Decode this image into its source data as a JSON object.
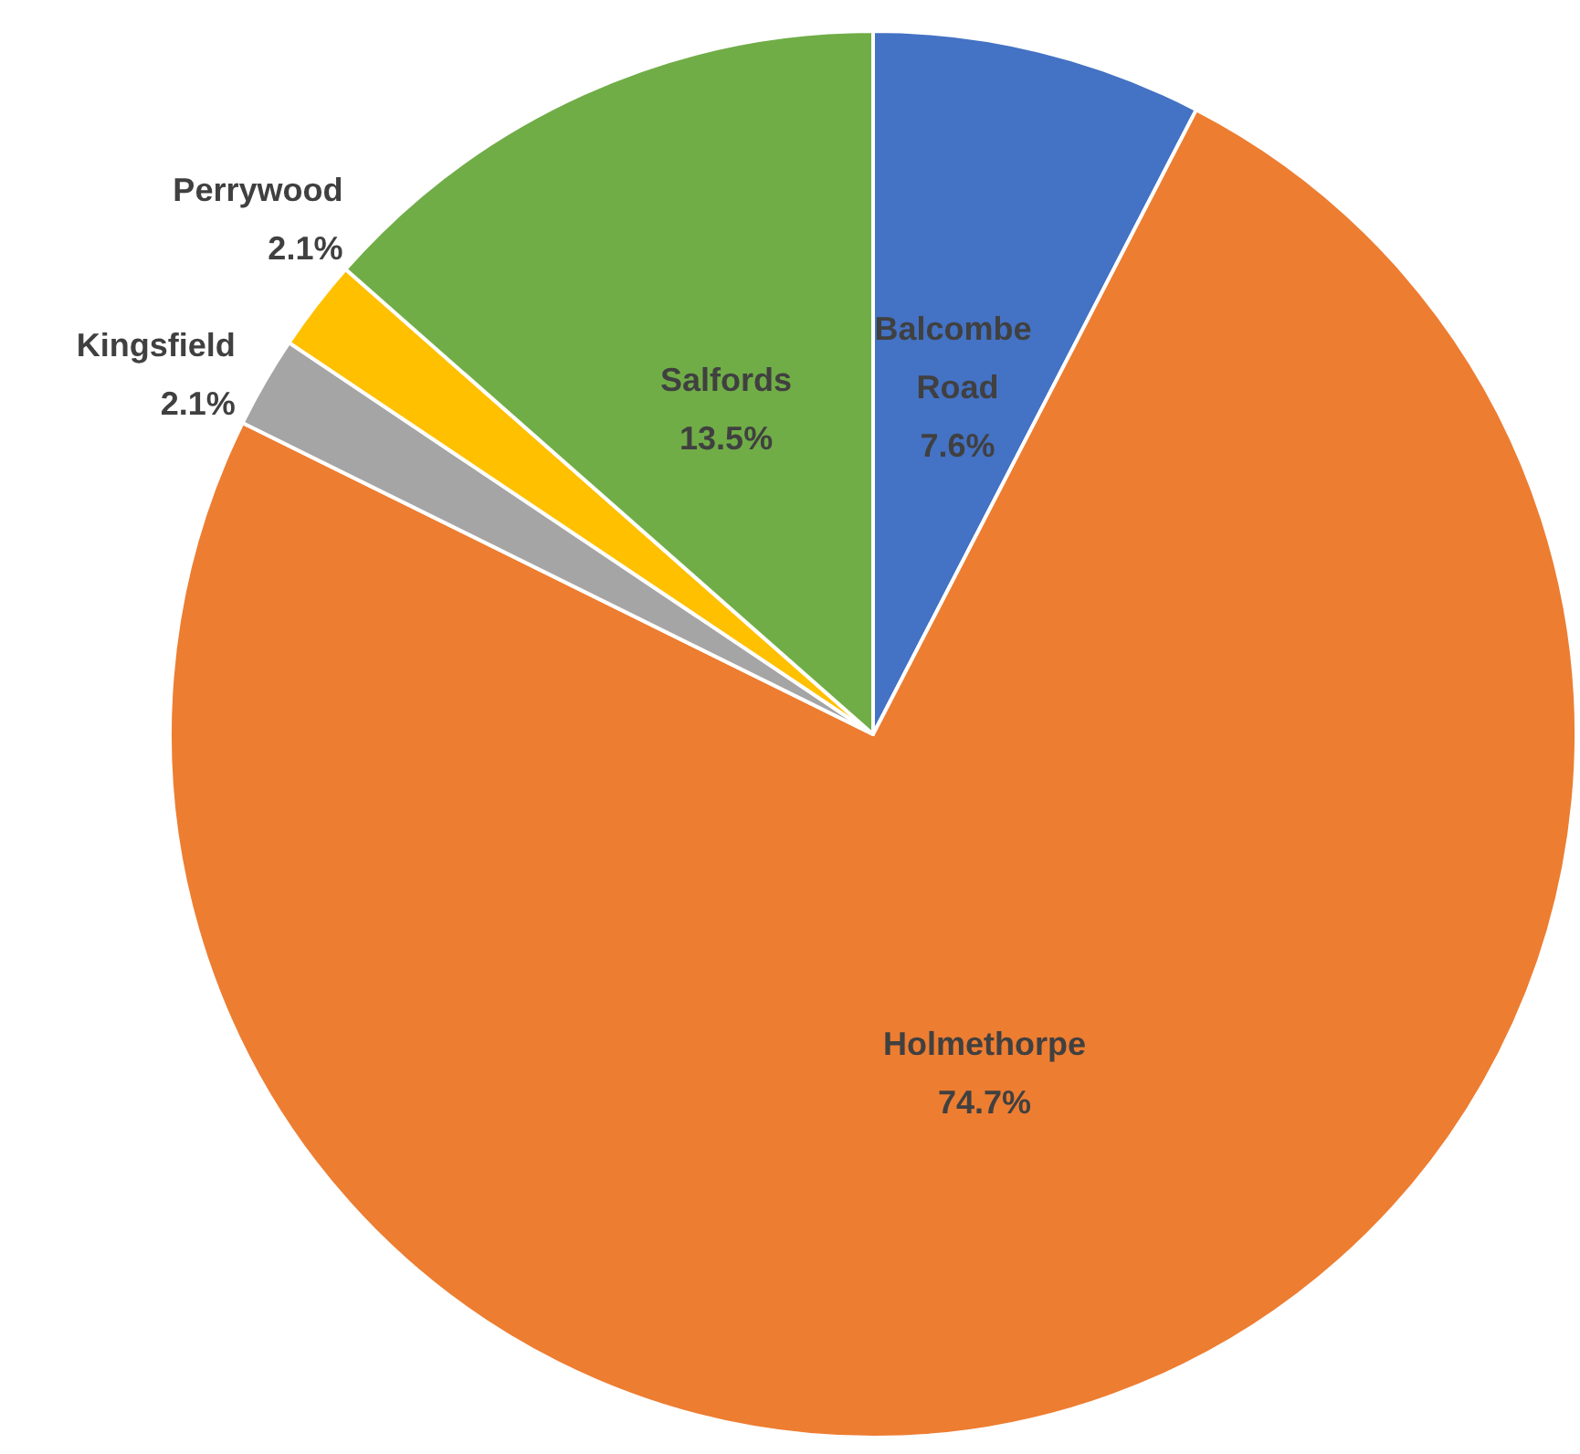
{
  "chart_data": {
    "type": "pie",
    "categories": [
      "Balcombe Road",
      "Holmethorpe",
      "Kingsfield",
      "Perrywood",
      "Salfords"
    ],
    "values": [
      7.6,
      74.7,
      2.1,
      2.1,
      13.5
    ],
    "colors": [
      "#4472c4",
      "#ed7d31",
      "#a5a5a5",
      "#ffc000",
      "#70ad47"
    ],
    "value_labels": [
      "7.6%",
      "74.7%",
      "2.1%",
      "2.1%",
      "13.5%"
    ]
  }
}
